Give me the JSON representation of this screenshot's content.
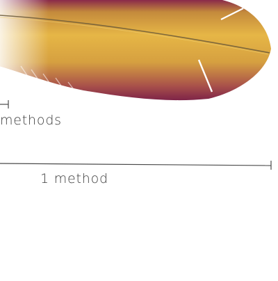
{
  "figure": {
    "feather": {
      "colors": {
        "vane_light": "#e6b646",
        "vane_mid": "#c89a3a",
        "vane_edge": "#8a2a4a",
        "shaft": "#6b5a3a"
      }
    },
    "annotations": [
      {
        "id": "small-bracket",
        "label": "methods"
      },
      {
        "id": "large-bracket",
        "label": "1 method"
      }
    ]
  }
}
